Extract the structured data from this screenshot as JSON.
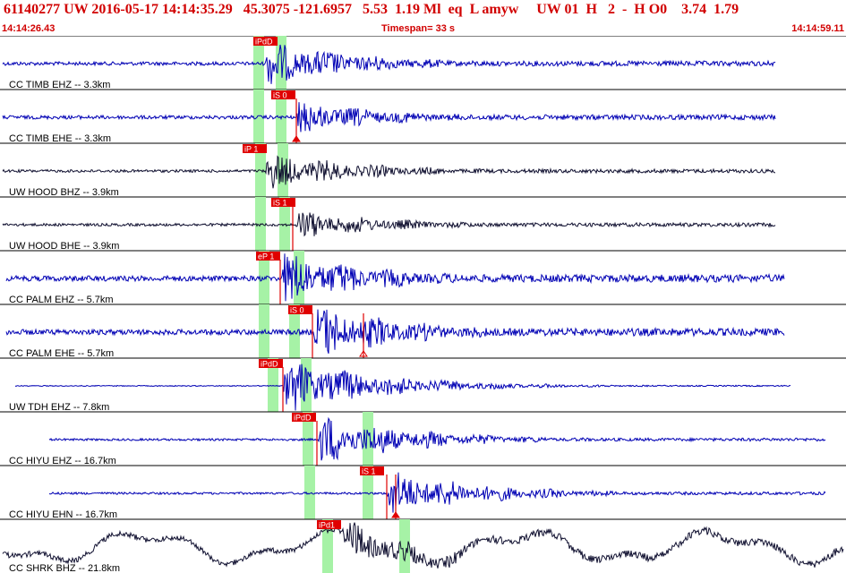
{
  "header": {
    "title": "61140277 UW 2016-05-17 14:14:35.29   45.3075 -121.6957   5.53  1.19 Ml  eq  L amyw     UW 01  H   2  -  H O0    3.74  1.79",
    "start_time": "14:14:26.43",
    "timespan": "Timespan=  33 s",
    "end_time": "14:14:59.11"
  },
  "colors": {
    "header_text": "#d10000",
    "waveform": "#0000b4",
    "waveform_dark": "#101030",
    "pick_marker": "#e00000",
    "pick_window": "#a6f2a6",
    "separator": "#000000"
  },
  "channels": [
    {
      "label": "CC TIMB EHZ -- 3.3km",
      "pick_label": "iPdD"
    },
    {
      "label": "CC TIMB EHE -- 3.3km",
      "pick_label": "iS 0"
    },
    {
      "label": "UW HOOD BHZ -- 3.9km",
      "pick_label": "iP 1"
    },
    {
      "label": "UW HOOD BHE -- 3.9km",
      "pick_label": "iS 1"
    },
    {
      "label": "CC PALM EHZ -- 5.7km",
      "pick_label": "eP 1"
    },
    {
      "label": "CC PALM EHE -- 5.7km",
      "pick_label": "iS 0"
    },
    {
      "label": "UW TDH EHZ -- 7.8km",
      "pick_label": "iPdD"
    },
    {
      "label": "CC HIYU EHZ -- 16.7km",
      "pick_label": "iPdD"
    },
    {
      "label": "CC HIYU EHN -- 16.7km",
      "pick_label": "iS 1"
    },
    {
      "label": "CC SHRK BHZ -- 21.8km",
      "pick_label": "iPd1"
    }
  ]
}
